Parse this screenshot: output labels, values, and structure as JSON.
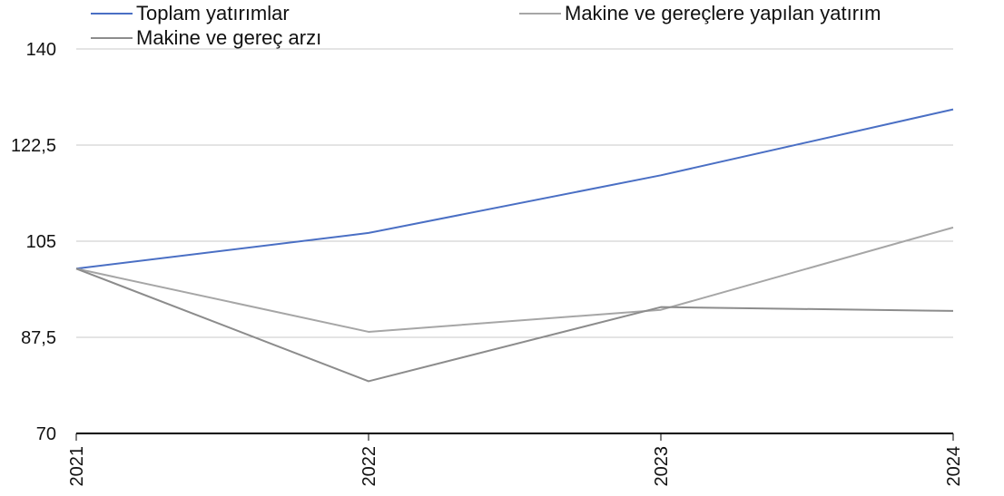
{
  "chart_data": {
    "type": "line",
    "title": "",
    "xlabel": "",
    "ylabel": "",
    "categories": [
      "2021",
      "2022",
      "2023",
      "2024"
    ],
    "ylim": [
      70,
      140
    ],
    "yticks": [
      70,
      87.5,
      105,
      122.5,
      140
    ],
    "ytick_labels": [
      "70",
      "87,5",
      "105",
      "122,5",
      "140"
    ],
    "grid": true,
    "legend_position": "top",
    "series": [
      {
        "name": "Toplam yatırımlar",
        "color": "#4a6fc4",
        "values": [
          100,
          106.5,
          117,
          129
        ]
      },
      {
        "name": "Makine ve gereçlere yapılan yatırım",
        "color": "#a6a6a6",
        "values": [
          100,
          88.5,
          92.5,
          107.5
        ]
      },
      {
        "name": "Makine ve gereç arzı",
        "color": "#8c8c8c",
        "values": [
          100,
          79.5,
          93,
          92.3
        ]
      }
    ]
  }
}
